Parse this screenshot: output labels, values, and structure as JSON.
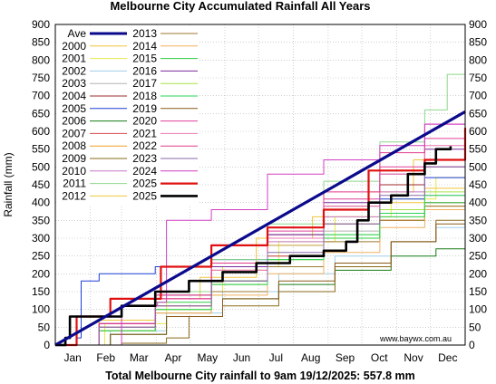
{
  "chart_data": {
    "type": "line",
    "title": "Melbourne City Accumulated Rainfall All Years",
    "xlabel": "Total Melbourne City rainfall to 9am 19/12/2025: 557.8 mm",
    "ylabel": "Rainfall (mm)",
    "watermark": "www.baywx.com.au",
    "x_unit": "day of year",
    "xlim": [
      1,
      366
    ],
    "ylim": [
      0,
      900
    ],
    "y_ticks": [
      0,
      50,
      100,
      150,
      200,
      250,
      300,
      350,
      400,
      450,
      500,
      550,
      600,
      650,
      700,
      750,
      800,
      850,
      900
    ],
    "month_labels": [
      "Jan",
      "Feb",
      "Mar",
      "Apr",
      "May",
      "Jun",
      "Jul",
      "Aug",
      "Sep",
      "Oct",
      "Nov",
      "Dec"
    ],
    "grid": true,
    "legend_position": "top-left",
    "series": [
      {
        "name": "Ave",
        "color": "#0a0a8c",
        "width": 3.2,
        "x": [
          1,
          366
        ],
        "y": [
          0,
          655
        ]
      },
      {
        "name": "2000",
        "color": "#f0c43a",
        "width": 1,
        "x": [
          1,
          40,
          90,
          130,
          180,
          230,
          280,
          320,
          366
        ],
        "y": [
          0,
          70,
          130,
          190,
          300,
          360,
          430,
          520,
          600
        ]
      },
      {
        "name": "2001",
        "color": "#e8e84a",
        "width": 1,
        "x": [
          1,
          45,
          100,
          150,
          200,
          250,
          300,
          340,
          366
        ],
        "y": [
          0,
          60,
          140,
          220,
          290,
          360,
          410,
          470,
          500
        ]
      },
      {
        "name": "2002",
        "color": "#9fcfe8",
        "width": 1,
        "x": [
          1,
          50,
          100,
          150,
          200,
          250,
          300,
          340,
          366
        ],
        "y": [
          0,
          40,
          90,
          150,
          200,
          250,
          290,
          330,
          360
        ]
      },
      {
        "name": "2003",
        "color": "#b4b4b4",
        "width": 1,
        "x": [
          1,
          40,
          90,
          140,
          190,
          240,
          290,
          330,
          366
        ],
        "y": [
          0,
          50,
          110,
          180,
          250,
          320,
          380,
          420,
          450
        ]
      },
      {
        "name": "2004",
        "color": "#9b2b2b",
        "width": 1,
        "x": [
          1,
          40,
          90,
          140,
          190,
          240,
          290,
          330,
          366
        ],
        "y": [
          0,
          60,
          130,
          220,
          310,
          390,
          450,
          500,
          540
        ]
      },
      {
        "name": "2005",
        "color": "#1c3fd6",
        "width": 1,
        "x": [
          1,
          20,
          24,
          40,
          90,
          140,
          190,
          240,
          290,
          330,
          366
        ],
        "y": [
          0,
          20,
          180,
          200,
          220,
          240,
          280,
          340,
          410,
          470,
          520
        ]
      },
      {
        "name": "2006",
        "color": "#167c16",
        "width": 1,
        "x": [
          1,
          50,
          100,
          150,
          200,
          250,
          300,
          340,
          366
        ],
        "y": [
          0,
          30,
          80,
          130,
          170,
          210,
          250,
          270,
          300
        ]
      },
      {
        "name": "2007",
        "color": "#d64a4a",
        "width": 1,
        "x": [
          1,
          40,
          90,
          140,
          190,
          240,
          290,
          330,
          366
        ],
        "y": [
          0,
          50,
          110,
          180,
          250,
          300,
          350,
          400,
          430
        ]
      },
      {
        "name": "2008",
        "color": "#f0a020",
        "width": 1,
        "x": [
          1,
          40,
          90,
          140,
          190,
          240,
          290,
          330,
          366
        ],
        "y": [
          0,
          40,
          100,
          170,
          240,
          300,
          350,
          390,
          410
        ]
      },
      {
        "name": "2009",
        "color": "#8a6a1a",
        "width": 1,
        "x": [
          1,
          60,
          100,
          120,
          150,
          200,
          250,
          300,
          340,
          366
        ],
        "y": [
          0,
          5,
          20,
          80,
          110,
          150,
          220,
          290,
          350,
          375
        ]
      },
      {
        "name": "2010",
        "color": "#c878c8",
        "width": 1,
        "x": [
          1,
          40,
          90,
          140,
          190,
          240,
          290,
          330,
          366
        ],
        "y": [
          0,
          60,
          130,
          210,
          290,
          360,
          430,
          500,
          560
        ]
      },
      {
        "name": "2011",
        "color": "#8cd88c",
        "width": 1,
        "x": [
          1,
          40,
          90,
          140,
          190,
          240,
          290,
          330,
          350,
          366
        ],
        "y": [
          0,
          70,
          150,
          240,
          340,
          460,
          570,
          660,
          760,
          830
        ]
      },
      {
        "name": "2012",
        "color": "#f0c43a",
        "width": 1,
        "x": [
          1,
          40,
          90,
          140,
          190,
          240,
          290,
          330,
          366
        ],
        "y": [
          0,
          70,
          140,
          210,
          280,
          340,
          400,
          440,
          460
        ]
      },
      {
        "name": "2013",
        "color": "#9b7a30",
        "width": 1,
        "x": [
          1,
          40,
          90,
          140,
          190,
          240,
          290,
          330,
          366
        ],
        "y": [
          0,
          40,
          90,
          150,
          220,
          290,
          350,
          390,
          410
        ]
      },
      {
        "name": "2014",
        "color": "#f0b060",
        "width": 1,
        "x": [
          1,
          40,
          90,
          140,
          190,
          240,
          290,
          330,
          366
        ],
        "y": [
          0,
          40,
          90,
          140,
          200,
          260,
          330,
          380,
          410
        ]
      },
      {
        "name": "2015",
        "color": "#2ecc40",
        "width": 1,
        "x": [
          1,
          40,
          90,
          140,
          190,
          240,
          290,
          330,
          366
        ],
        "y": [
          0,
          50,
          120,
          180,
          240,
          300,
          360,
          400,
          430
        ]
      },
      {
        "name": "2016",
        "color": "#7a2a9a",
        "width": 1,
        "x": [
          1,
          40,
          90,
          140,
          190,
          240,
          290,
          330,
          366
        ],
        "y": [
          0,
          60,
          140,
          220,
          310,
          400,
          480,
          550,
          600
        ]
      },
      {
        "name": "2017",
        "color": "#a8e04a",
        "width": 1,
        "x": [
          1,
          40,
          90,
          140,
          190,
          240,
          290,
          330,
          366
        ],
        "y": [
          0,
          40,
          100,
          170,
          240,
          310,
          380,
          430,
          470
        ]
      },
      {
        "name": "2018",
        "color": "#2ad45a",
        "width": 1,
        "x": [
          1,
          40,
          90,
          140,
          190,
          240,
          290,
          330,
          366
        ],
        "y": [
          0,
          40,
          100,
          170,
          240,
          310,
          370,
          420,
          460
        ]
      },
      {
        "name": "2019",
        "color": "#8a5a1a",
        "width": 1,
        "x": [
          1,
          50,
          100,
          150,
          200,
          250,
          300,
          340,
          366
        ],
        "y": [
          0,
          30,
          80,
          130,
          180,
          230,
          290,
          340,
          375
        ]
      },
      {
        "name": "2020",
        "color": "#e0409a",
        "width": 1,
        "x": [
          1,
          40,
          90,
          140,
          190,
          240,
          290,
          330,
          366
        ],
        "y": [
          0,
          60,
          140,
          230,
          320,
          410,
          500,
          580,
          650
        ]
      },
      {
        "name": "2021",
        "color": "#ec7ab4",
        "width": 1,
        "x": [
          1,
          40,
          90,
          140,
          190,
          240,
          290,
          330,
          366
        ],
        "y": [
          0,
          50,
          130,
          210,
          300,
          390,
          480,
          560,
          620
        ]
      },
      {
        "name": "2022",
        "color": "#e03a8a",
        "width": 1,
        "x": [
          1,
          40,
          90,
          140,
          190,
          240,
          290,
          330,
          366
        ],
        "y": [
          0,
          60,
          130,
          230,
          330,
          430,
          540,
          620,
          700
        ]
      },
      {
        "name": "2023",
        "color": "#8a6aa8",
        "width": 1,
        "x": [
          1,
          40,
          90,
          140,
          190,
          240,
          290,
          330,
          366
        ],
        "y": [
          0,
          50,
          110,
          180,
          260,
          340,
          420,
          500,
          560
        ]
      },
      {
        "name": "2024",
        "color": "#d13fc4",
        "width": 1,
        "x": [
          1,
          60,
          92,
          100,
          140,
          190,
          240,
          290,
          330,
          366
        ],
        "y": [
          0,
          110,
          120,
          350,
          380,
          480,
          520,
          560,
          620,
          790
        ]
      },
      {
        "name": "2025",
        "color": "#e01010",
        "width": 2.2,
        "x": [
          1,
          20,
          50,
          95,
          140,
          190,
          240,
          280,
          330,
          366
        ],
        "y": [
          0,
          80,
          130,
          220,
          280,
          330,
          380,
          490,
          520,
          610
        ]
      },
      {
        "name": "2025",
        "color": "#000000",
        "width": 2.6,
        "x": [
          1,
          10,
          14,
          30,
          60,
          90,
          120,
          150,
          180,
          210,
          240,
          260,
          270,
          280,
          300,
          315,
          330,
          340,
          353
        ],
        "y": [
          0,
          20,
          80,
          80,
          110,
          150,
          180,
          205,
          230,
          250,
          265,
          290,
          350,
          400,
          420,
          480,
          510,
          550,
          558
        ]
      }
    ]
  }
}
